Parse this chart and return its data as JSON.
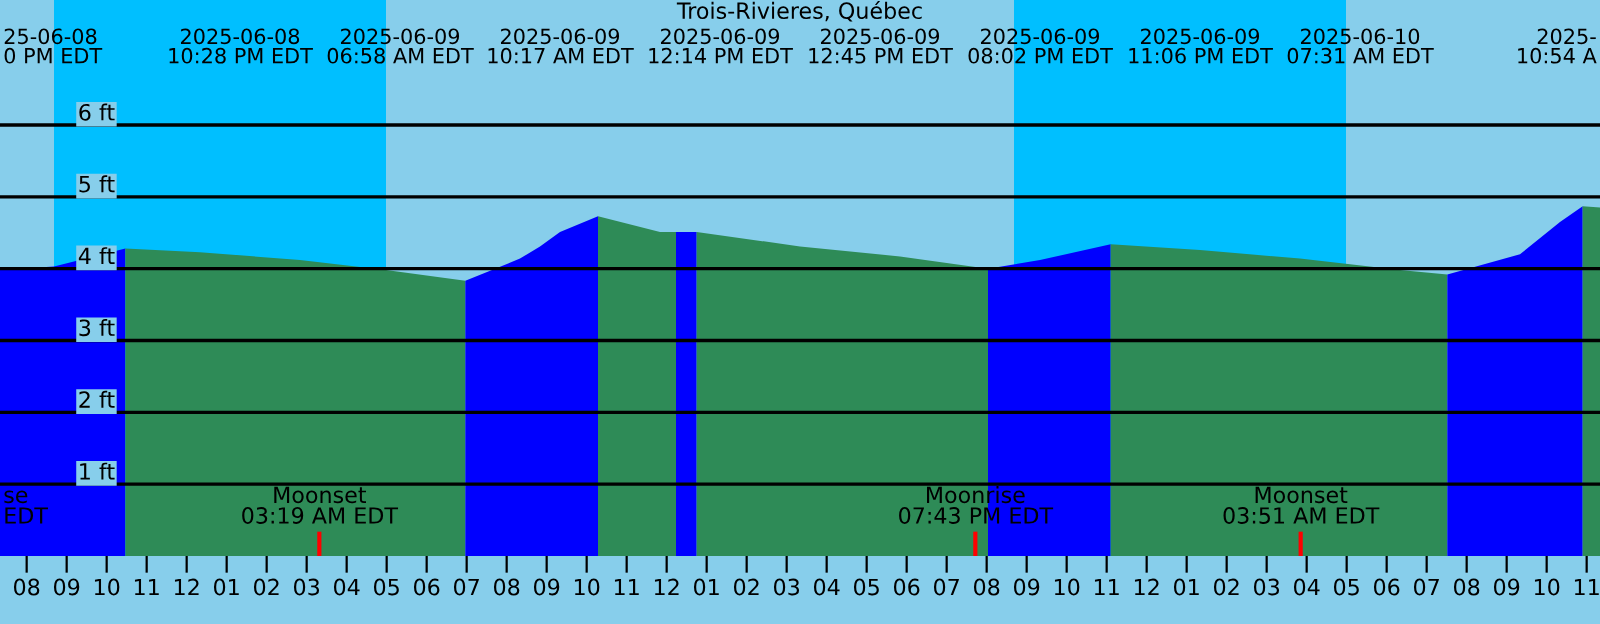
{
  "chart_data": {
    "type": "area",
    "title": "Trois-Rivieres, Québec",
    "annotations": [
      "25-06-08\n0 PM EDT",
      "2025-06-08\n10:28 PM EDT",
      "2025-06-09\n06:58 AM EDT",
      "2025-06-09\n10:17 AM EDT",
      "2025-06-09\n12:14 PM EDT",
      "2025-06-09\n12:45 PM EDT",
      "2025-06-09\n08:02 PM EDT",
      "2025-06-09\n11:06 PM EDT",
      "2025-06-10\n07:31 AM EDT",
      "2025-\n10:54 A",
      "se\nEDT"
    ],
    "series": [
      {
        "color": "#0000ff",
        "x": [
          "2025-06-08T19:20",
          "2025-06-08T20:41",
          "2025-06-08T22:28"
        ],
        "values": [
          3.98,
          4.03,
          4.28
        ]
      },
      {
        "color": "#2e8b57",
        "x": [
          "2025-06-08T22:28",
          "2025-06-09T00:20",
          "2025-06-09T02:50",
          "2025-06-09T04:59",
          "2025-06-09T06:58"
        ],
        "values": [
          4.28,
          4.23,
          4.12,
          3.98,
          3.83
        ]
      },
      {
        "color": "#0000ff",
        "x": [
          "2025-06-09T06:58",
          "2025-06-09T08:20",
          "2025-06-09T08:50",
          "2025-06-09T09:20",
          "2025-06-09T10:17"
        ],
        "values": [
          3.83,
          4.14,
          4.31,
          4.51,
          4.73
        ]
      },
      {
        "color": "#2e8b57",
        "x": [
          "2025-06-09T10:17",
          "2025-06-09T11:50",
          "2025-06-09T12:14"
        ],
        "values": [
          4.73,
          4.51,
          4.51
        ]
      },
      {
        "color": "#0000ff",
        "x": [
          "2025-06-09T12:14",
          "2025-06-09T12:45"
        ],
        "values": [
          4.51,
          4.51
        ]
      },
      {
        "color": "#2e8b57",
        "x": [
          "2025-06-09T12:45",
          "2025-06-09T15:20",
          "2025-06-09T17:50",
          "2025-06-09T20:02"
        ],
        "values": [
          4.51,
          4.31,
          4.17,
          4.0
        ]
      },
      {
        "color": "#0000ff",
        "x": [
          "2025-06-09T20:02",
          "2025-06-09T21:20",
          "2025-06-09T23:06"
        ],
        "values": [
          4.0,
          4.12,
          4.34
        ]
      },
      {
        "color": "#2e8b57",
        "x": [
          "2025-06-09T23:06",
          "2025-06-10T01:20",
          "2025-06-10T03:50",
          "2025-06-10T06:20",
          "2025-06-10T07:31"
        ],
        "values": [
          4.34,
          4.26,
          4.14,
          3.98,
          3.92
        ]
      },
      {
        "color": "#0000ff",
        "x": [
          "2025-06-10T07:31",
          "2025-06-10T09:20",
          "2025-06-10T10:20",
          "2025-06-10T10:54"
        ],
        "values": [
          3.92,
          4.2,
          4.65,
          4.87
        ]
      },
      {
        "color": "#2e8b57",
        "x": [
          "2025-06-10T10:54",
          "2025-06-10T11:20"
        ],
        "values": [
          4.87,
          4.85
        ]
      }
    ],
    "xlim": [
      "2025-06-08T19:20",
      "2025-06-10T11:20"
    ],
    "xticks": [
      {
        "value": "2025-06-08T20:00",
        "label": "08"
      },
      {
        "value": "2025-06-08T21:00",
        "label": "09"
      },
      {
        "value": "2025-06-08T22:00",
        "label": "10"
      },
      {
        "value": "2025-06-08T23:00",
        "label": "11"
      },
      {
        "value": "2025-06-09T00:00",
        "label": "12"
      },
      {
        "value": "2025-06-09T01:00",
        "label": "01"
      },
      {
        "value": "2025-06-09T02:00",
        "label": "02"
      },
      {
        "value": "2025-06-09T03:00",
        "label": "03"
      },
      {
        "value": "2025-06-09T04:00",
        "label": "04"
      },
      {
        "value": "2025-06-09T05:00",
        "label": "05"
      },
      {
        "value": "2025-06-09T06:00",
        "label": "06"
      },
      {
        "value": "2025-06-09T07:00",
        "label": "07"
      },
      {
        "value": "2025-06-09T08:00",
        "label": "08"
      },
      {
        "value": "2025-06-09T09:00",
        "label": "09"
      },
      {
        "value": "2025-06-09T10:00",
        "label": "10"
      },
      {
        "value": "2025-06-09T11:00",
        "label": "11"
      },
      {
        "value": "2025-06-09T12:00",
        "label": "12"
      },
      {
        "value": "2025-06-09T13:00",
        "label": "01"
      },
      {
        "value": "2025-06-09T14:00",
        "label": "02"
      },
      {
        "value": "2025-06-09T15:00",
        "label": "03"
      },
      {
        "value": "2025-06-09T16:00",
        "label": "04"
      },
      {
        "value": "2025-06-09T17:00",
        "label": "05"
      },
      {
        "value": "2025-06-09T18:00",
        "label": "06"
      },
      {
        "value": "2025-06-09T19:00",
        "label": "07"
      },
      {
        "value": "2025-06-09T20:00",
        "label": "08"
      },
      {
        "value": "2025-06-09T21:00",
        "label": "09"
      },
      {
        "value": "2025-06-09T22:00",
        "label": "10"
      },
      {
        "value": "2025-06-09T23:00",
        "label": "11"
      },
      {
        "value": "2025-06-10T00:00",
        "label": "12"
      },
      {
        "value": "2025-06-10T01:00",
        "label": "01"
      },
      {
        "value": "2025-06-10T02:00",
        "label": "02"
      },
      {
        "value": "2025-06-10T03:00",
        "label": "03"
      },
      {
        "value": "2025-06-10T04:00",
        "label": "04"
      },
      {
        "value": "2025-06-10T05:00",
        "label": "05"
      },
      {
        "value": "2025-06-10T06:00",
        "label": "06"
      },
      {
        "value": "2025-06-10T07:00",
        "label": "07"
      },
      {
        "value": "2025-06-10T08:00",
        "label": "08"
      },
      {
        "value": "2025-06-10T09:00",
        "label": "09"
      },
      {
        "value": "2025-06-10T10:00",
        "label": "10"
      },
      {
        "value": "2025-06-10T11:00",
        "label": "11"
      }
    ],
    "ylim": [
      0,
      7.74
    ],
    "yticks": [
      {
        "value": 1,
        "label": "1 ft"
      },
      {
        "value": 2,
        "label": "2 ft"
      },
      {
        "value": 3,
        "label": "3 ft"
      },
      {
        "value": 4,
        "label": "4 ft"
      },
      {
        "value": 5,
        "label": "5 ft"
      },
      {
        "value": 6,
        "label": "6 ft"
      }
    ],
    "grid": "y",
    "bands": [
      {
        "axis": "x",
        "from": "2025-06-08T20:41",
        "to": "2025-06-09T04:59",
        "color": "#00bfff"
      },
      {
        "axis": "x",
        "from": "2025-06-09T20:41",
        "to": "2025-06-10T04:59",
        "color": "#00bfff"
      }
    ],
    "ref_lines": [
      {
        "axis": "x",
        "value": "2025-06-09T03:19",
        "label": "Moonset\n03:19 AM EDT",
        "color": "#ff0000"
      },
      {
        "axis": "x",
        "value": "2025-06-09T19:43",
        "label": "Moonrise\n07:43 PM EDT",
        "color": "#ff0000"
      },
      {
        "axis": "x",
        "value": "2025-06-10T03:51",
        "label": "Moonset\n03:51 AM EDT",
        "color": "#ff0000"
      }
    ]
  }
}
